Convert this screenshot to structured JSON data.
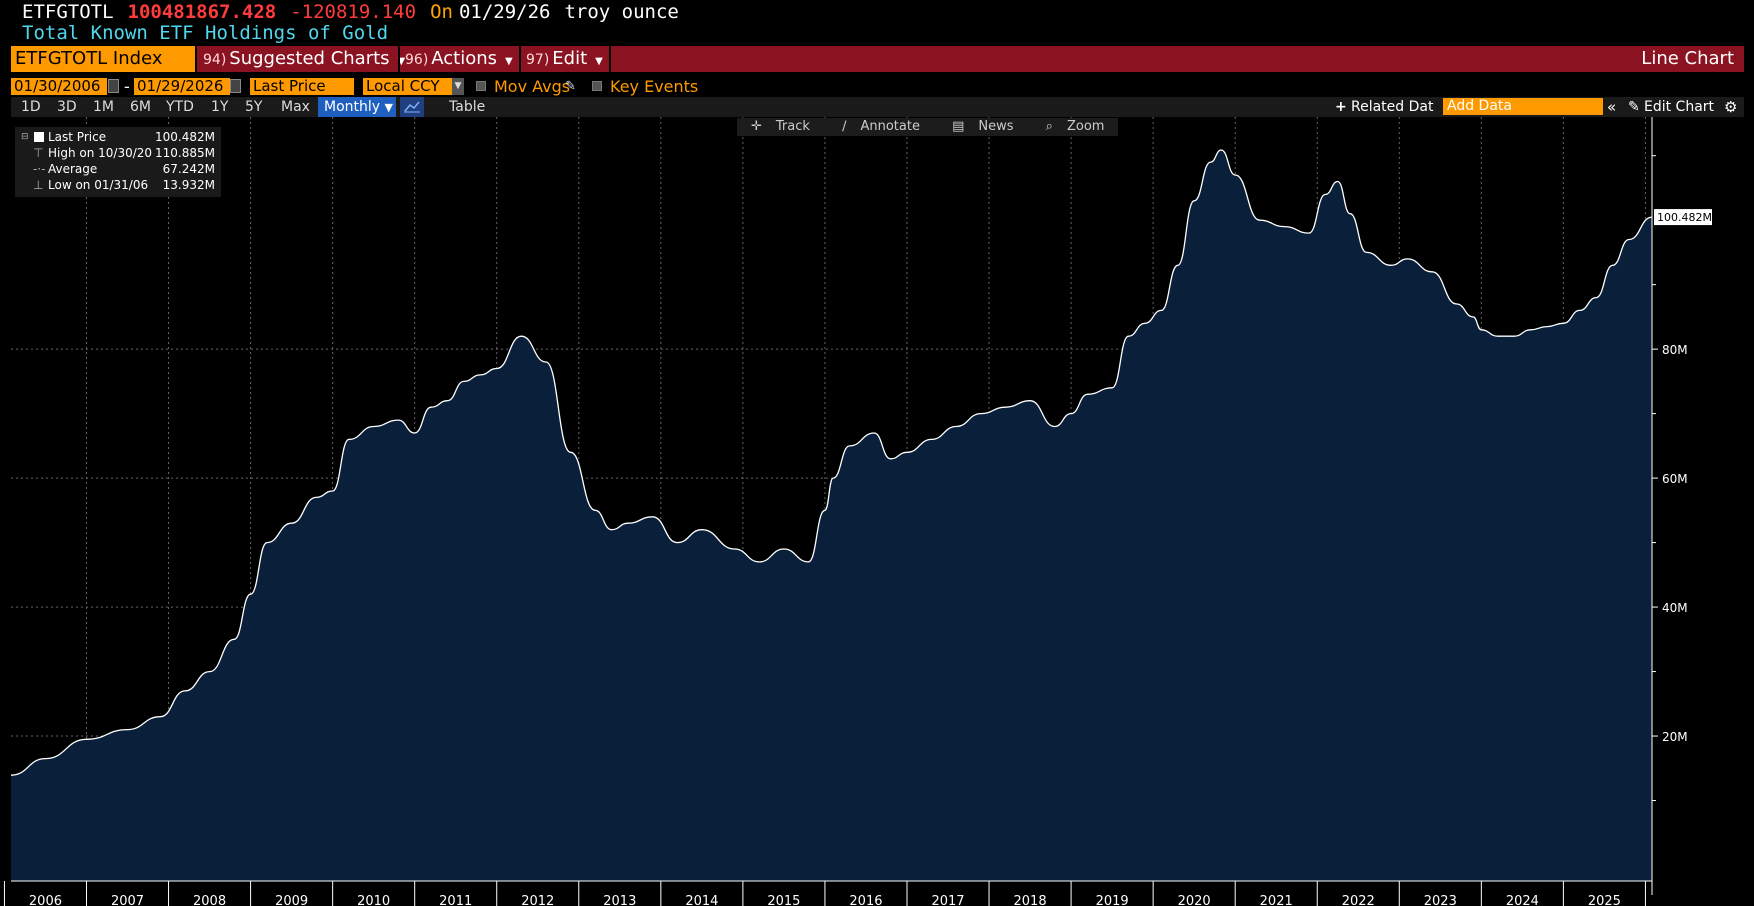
{
  "header": {
    "ticker": "ETFGTOTL",
    "last_value": "100481867.428",
    "change": "-120819.140",
    "on_label": "On",
    "date": "01/29/26",
    "unit": "troy ounce",
    "subtitle": "Total Known ETF Holdings of Gold"
  },
  "toolbar": {
    "security": "ETFGTOTL Index",
    "menus": [
      {
        "num": "94)",
        "label": "Suggested Charts"
      },
      {
        "num": "96)",
        "label": "Actions"
      },
      {
        "num": "97)",
        "label": "Edit"
      }
    ],
    "chart_type_title": "Line Chart"
  },
  "settings": {
    "start_date": "01/30/2006",
    "end_date": "01/29/2026",
    "date_sep": "-",
    "field": "Last Price",
    "currency": "Local CCY",
    "mov_avgs": "Mov Avgs",
    "key_events": "Key Events"
  },
  "periods": {
    "buttons": [
      "1D",
      "3D",
      "1M",
      "6M",
      "YTD",
      "1Y",
      "5Y",
      "Max"
    ],
    "frequency": "Monthly",
    "table": "Table",
    "related_data": "Related Dat",
    "add_data_placeholder": "Add Data",
    "edit_chart": "Edit Chart"
  },
  "chart_tools": [
    "Track",
    "Annotate",
    "News",
    "Zoom"
  ],
  "legend": {
    "last": {
      "label": "Last Price",
      "value": "100.482M"
    },
    "high": {
      "label": "High on 10/30/20",
      "value": "110.885M"
    },
    "avg": {
      "label": "Average",
      "value": "67.242M"
    },
    "low": {
      "label": "Low on 01/31/06",
      "value": "13.932M"
    }
  },
  "colors": {
    "accent": "#ff9900",
    "toolbar_red": "#8b1220",
    "area_fill": "#0a1f3a",
    "line": "#ffffff",
    "subtitle": "#4fd7ee",
    "price": "#ff3b3b"
  },
  "chart_data": {
    "type": "area",
    "title": "",
    "xlabel": "",
    "ylabel": "",
    "ylim": [
      0,
      116
    ],
    "y_ticks": [
      "20M",
      "40M",
      "60M",
      "80M"
    ],
    "last_price_label": "100.482M",
    "x_ticks": [
      "2006",
      "2007",
      "2008",
      "2009",
      "2010",
      "2011",
      "2012",
      "2013",
      "2014",
      "2015",
      "2016",
      "2017",
      "2018",
      "2019",
      "2020",
      "2021",
      "2022",
      "2023",
      "2024",
      "2025"
    ],
    "x_range": [
      2006.08,
      2026.08
    ],
    "x_unit": "year",
    "y_unit": "million troy ounces",
    "series": [
      {
        "x": [
          2006.08,
          2006.5,
          2007.0,
          2007.5,
          2007.9,
          2008.2,
          2008.5,
          2008.8,
          2009.0,
          2009.2,
          2009.5,
          2009.8,
          2010.0,
          2010.2,
          2010.5,
          2010.8,
          2011.0,
          2011.2,
          2011.4,
          2011.6,
          2011.8,
          2012.0,
          2012.3,
          2012.6,
          2012.9,
          2013.2,
          2013.4,
          2013.6,
          2013.9,
          2014.2,
          2014.5,
          2014.9,
          2015.2,
          2015.5,
          2015.8,
          2016.0,
          2016.1,
          2016.3,
          2016.6,
          2016.8,
          2017.0,
          2017.3,
          2017.6,
          2017.9,
          2018.2,
          2018.5,
          2018.8,
          2019.0,
          2019.2,
          2019.5,
          2019.7,
          2019.9,
          2020.1,
          2020.3,
          2020.5,
          2020.7,
          2020.83,
          2021.0,
          2021.3,
          2021.6,
          2021.9,
          2022.1,
          2022.25,
          2022.4,
          2022.6,
          2022.9,
          2023.1,
          2023.4,
          2023.7,
          2023.9,
          2024.0,
          2024.2,
          2024.4,
          2024.6,
          2024.8,
          2025.0,
          2025.2,
          2025.4,
          2025.6,
          2025.8,
          2026.08
        ],
        "values": [
          13.93,
          16.5,
          19.5,
          21,
          23,
          27,
          30,
          35,
          42,
          50,
          53,
          57,
          58,
          66,
          68,
          69,
          67,
          71,
          72,
          75,
          76,
          77,
          82,
          78,
          64,
          55,
          52,
          53,
          54,
          50,
          52,
          49,
          47,
          49,
          47,
          55,
          60,
          65,
          67,
          63,
          64,
          66,
          68,
          70,
          71,
          72,
          68,
          70,
          73,
          74,
          82,
          84,
          86,
          93,
          103,
          109,
          110.88,
          107,
          100,
          99,
          98,
          104,
          106,
          101,
          95,
          93,
          94,
          92,
          87,
          85,
          83,
          82,
          82,
          83,
          83.5,
          84,
          86,
          88,
          93,
          97,
          100.48
        ]
      }
    ]
  }
}
